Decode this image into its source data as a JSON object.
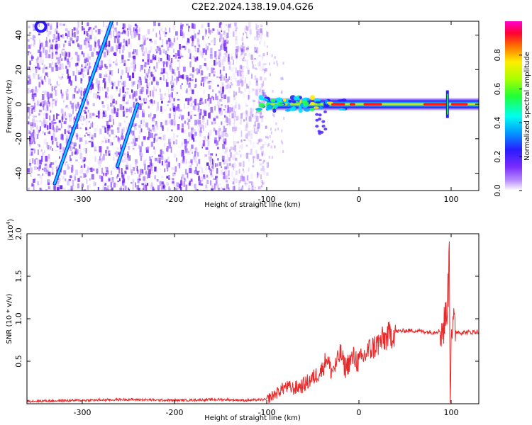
{
  "title": "C2E2.2024.138.19.04.G26",
  "colors": {
    "snr_line": "#e8292a",
    "spectrogram_background": "#ffffff",
    "noise_violet": "#8a3cff",
    "axis": "#000000"
  },
  "chart_data": [
    {
      "type": "heatmap",
      "title": "C2E2.2024.138.19.04.G26",
      "xlabel": "Height of straight line (km)",
      "ylabel": "Frequency (Hz)",
      "xlim": [
        -360,
        130
      ],
      "ylim": [
        -50,
        48
      ],
      "xticks": [
        -300,
        -200,
        -100,
        0,
        100
      ],
      "yticks": [
        -40,
        -20,
        0,
        20,
        40
      ],
      "colorbar": {
        "label": "Normalized spectral amplitude",
        "range": [
          0.0,
          1.0
        ],
        "ticks": [
          "0.0",
          "0.2",
          "0.4",
          "0.6",
          "0.8"
        ],
        "colormap": "rainbow (violet → blue → cyan → green → yellow → red → magenta)"
      },
      "features": [
        {
          "name": "noise_region",
          "x_range": [
            -360,
            -100
          ],
          "y_range": [
            -50,
            48
          ]
        },
        {
          "name": "carrier_band",
          "x_range": [
            -100,
            130
          ],
          "frequency_hz": 0,
          "peak_amplitude": 0.9
        },
        {
          "name": "streak",
          "from": [
            -330,
            -46
          ],
          "to": [
            -268,
            48
          ]
        },
        {
          "name": "streak",
          "from": [
            -262,
            -36
          ],
          "to": [
            -240,
            0
          ]
        },
        {
          "name": "transient",
          "x": 96,
          "y_range": [
            -8,
            8
          ]
        }
      ]
    },
    {
      "type": "line",
      "xlabel": "Height of straight line (km)",
      "ylabel": "SNR (10 * v/v)",
      "y_multiplier": "(x10^4)",
      "xlim": [
        -360,
        130
      ],
      "ylim": [
        0,
        2.0
      ],
      "xticks": [
        -300,
        -200,
        -100,
        0,
        100
      ],
      "yticks": [
        0.5,
        1.0,
        1.5,
        2.0
      ],
      "series": [
        {
          "x": [
            -360,
            -300,
            -250,
            -200,
            -150,
            -120,
            -100,
            -90,
            -80,
            -70,
            -60,
            -50,
            -40,
            -35,
            -30,
            -25,
            -20,
            -15,
            -10,
            -5,
            0,
            10,
            20,
            30,
            40,
            50,
            60,
            70,
            80,
            88,
            92,
            95,
            97,
            98,
            99,
            100,
            102,
            105,
            110,
            120,
            130
          ],
          "y": [
            0.03,
            0.04,
            0.05,
            0.04,
            0.05,
            0.04,
            0.05,
            0.12,
            0.2,
            0.18,
            0.22,
            0.3,
            0.4,
            0.55,
            0.38,
            0.45,
            0.6,
            0.42,
            0.5,
            0.55,
            0.48,
            0.62,
            0.7,
            0.78,
            0.85,
            0.86,
            0.86,
            0.85,
            0.84,
            0.86,
            0.9,
            1.1,
            1.35,
            2.0,
            0.05,
            0.9,
            0.92,
            0.85,
            0.84,
            0.84,
            0.85
          ]
        }
      ]
    }
  ]
}
